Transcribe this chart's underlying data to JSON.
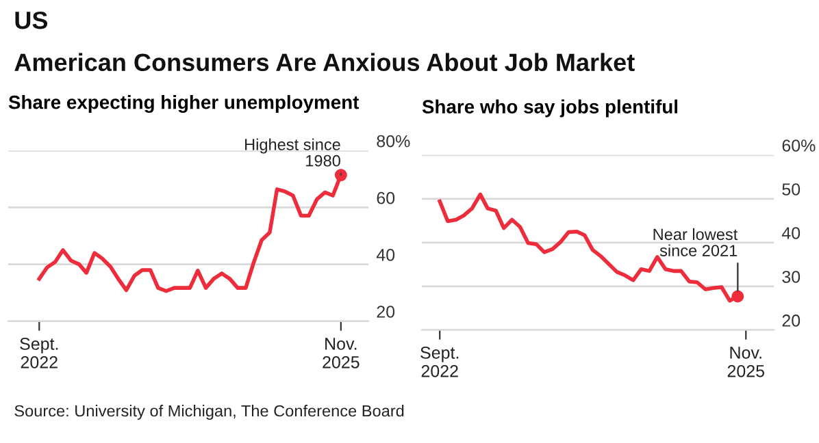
{
  "chart_data": [
    {
      "type": "line",
      "title": "Share expecting higher unemployment",
      "annotations": [
        "US",
        "American Consumers Are Anxious About Job Market",
        {
          "text": "Highest since\n1980",
          "x": "2025-11",
          "y": 71.4
        }
      ],
      "x": [
        "2022-09",
        "2022-10",
        "2022-11",
        "2022-12",
        "2023-01",
        "2023-02",
        "2023-03",
        "2023-04",
        "2023-05",
        "2023-06",
        "2023-07",
        "2023-08",
        "2023-09",
        "2023-10",
        "2023-11",
        "2023-12",
        "2024-01",
        "2024-02",
        "2024-03",
        "2024-04",
        "2024-05",
        "2024-06",
        "2024-07",
        "2024-08",
        "2024-09",
        "2024-10",
        "2024-11",
        "2024-12",
        "2025-01",
        "2025-02",
        "2025-03",
        "2025-04",
        "2025-05",
        "2025-06",
        "2025-07",
        "2025-08",
        "2025-09",
        "2025-10",
        "2025-11"
      ],
      "series": [
        {
          "type": "scatter",
          "marker": "circle",
          "color": "#ee2d3c",
          "x": [
            "2025-11"
          ],
          "values": [
            71.4
          ]
        },
        {
          "color": "#ee2d3c",
          "values": [
            34.9,
            38.9,
            40.8,
            45,
            41.3,
            40,
            37,
            44,
            42,
            39.2,
            34.9,
            30.9,
            36,
            38,
            38,
            31.7,
            30.6,
            31.7,
            31.7,
            31.7,
            37.8,
            31.7,
            34.9,
            36.8,
            34.9,
            31.7,
            31.7,
            40.5,
            48.5,
            51.2,
            66.4,
            65.6,
            64.2,
            57.1,
            57.1,
            62.9,
            65.3,
            64.2,
            71.4
          ]
        }
      ],
      "xlim": [
        "2022-05-05",
        "2026-02-15"
      ],
      "xticks": [
        {
          "value": "2022-09",
          "label": "Sept.\n2022"
        },
        {
          "value": "2025-11",
          "label": "Nov.\n2025"
        }
      ],
      "ylim": [
        20,
        80
      ],
      "yticks": [
        20,
        40,
        60,
        {
          "value": 80,
          "label": "80%"
        }
      ],
      "grid": "y",
      "legend": false,
      "marker": "none",
      "line_style": "solid"
    },
    {
      "type": "line",
      "title": "Share who say jobs plentiful",
      "annotations": [
        {
          "text": "Near lowest\nsince 2021",
          "x": "2025-10",
          "y": 27.7
        },
        "Source: University of Michigan, The Conference Board"
      ],
      "x": [
        "2022-09",
        "2022-10",
        "2022-11",
        "2022-12",
        "2023-01",
        "2023-02",
        "2023-03",
        "2023-04",
        "2023-05",
        "2023-06",
        "2023-07",
        "2023-08",
        "2023-09",
        "2023-10",
        "2023-11",
        "2023-12",
        "2024-01",
        "2024-02",
        "2024-03",
        "2024-04",
        "2024-05",
        "2024-06",
        "2024-07",
        "2024-08",
        "2024-09",
        "2024-10",
        "2024-11",
        "2024-12",
        "2025-01",
        "2025-02",
        "2025-03",
        "2025-04",
        "2025-05",
        "2025-06",
        "2025-07",
        "2025-08",
        "2025-09",
        "2025-10"
      ],
      "series": [
        {
          "type": "scatter",
          "marker": "circle",
          "color": "#ee2d3c",
          "x": [
            "2025-10"
          ],
          "values": [
            27.7
          ]
        },
        {
          "color": "#ee2d3c",
          "values": [
            49.4,
            44.9,
            45.2,
            46.2,
            47.8,
            51,
            47.8,
            47.3,
            43.3,
            45.2,
            43.6,
            39.9,
            39.6,
            37.8,
            38.5,
            40.1,
            42.4,
            42.5,
            41.7,
            38.3,
            36.9,
            35.1,
            33.3,
            32.5,
            31.4,
            33.9,
            33.5,
            36.7,
            33.9,
            33.5,
            33.5,
            31.1,
            30.9,
            29.3,
            29.6,
            29.8,
            26.7,
            27.7
          ]
        }
      ],
      "xlim": [
        "2022-06-25",
        "2026-02-15"
      ],
      "xticks": [
        {
          "value": "2022-09",
          "label": "Sept.\n2022"
        },
        {
          "value": "2025-11",
          "label": "Nov.\n2025"
        }
      ],
      "ylim": [
        20,
        60
      ],
      "yticks": [
        20,
        30,
        40,
        50,
        {
          "value": 60,
          "label": "60%"
        }
      ],
      "grid": "y",
      "legend": false,
      "marker": "none",
      "line_style": "solid"
    }
  ]
}
